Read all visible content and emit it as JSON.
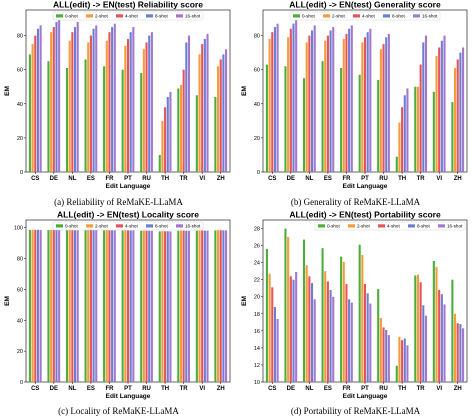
{
  "colors": [
    "#4cae3a",
    "#f79a3a",
    "#e8535a",
    "#6a7fd1",
    "#a376cf"
  ],
  "chart_data": [
    {
      "type": "bar",
      "title": "ALL(edit) -> EN(test) Reliability score",
      "caption": "(a)  Reliability of ReMaKE-LLaMA",
      "xlabel": "Edit Language",
      "ylabel": "EM",
      "ylim": [
        0,
        95
      ],
      "yticks": [
        0,
        20,
        40,
        60,
        80
      ],
      "legend_position": "top-center",
      "categories": [
        "CS",
        "DE",
        "NL",
        "ES",
        "FR",
        "PT",
        "RU",
        "TH",
        "TR",
        "VI",
        "ZH"
      ],
      "series": [
        {
          "name": "0-shot",
          "values": [
            69,
            65,
            61,
            66,
            62,
            60,
            58,
            10,
            49,
            45,
            44
          ]
        },
        {
          "name": "2-shot",
          "values": [
            75,
            82,
            77,
            76,
            77,
            74,
            72,
            30,
            51,
            69,
            62
          ]
        },
        {
          "name": "4-shot",
          "values": [
            80,
            85,
            82,
            80,
            82,
            78,
            76,
            38,
            60,
            75,
            66
          ]
        },
        {
          "name": "8-shot",
          "values": [
            84,
            88,
            85,
            84,
            85,
            82,
            80,
            44,
            76,
            78,
            69
          ]
        },
        {
          "name": "16-shot",
          "values": [
            86,
            90,
            88,
            86,
            87,
            85,
            82,
            47,
            80,
            81,
            72
          ]
        }
      ]
    },
    {
      "type": "bar",
      "title": "ALL(edit) -> EN(test) Generality score",
      "caption": "(b)  Generality of ReMaKE-LLaMA",
      "xlabel": "Edit Language",
      "ylabel": "EM",
      "ylim": [
        0,
        95
      ],
      "yticks": [
        0,
        20,
        40,
        60,
        80
      ],
      "legend_position": "top-center",
      "categories": [
        "CS",
        "DE",
        "NL",
        "ES",
        "FR",
        "PT",
        "RU",
        "TH",
        "TR",
        "VI",
        "ZH"
      ],
      "series": [
        {
          "name": "0-shot",
          "values": [
            63,
            62,
            55,
            65,
            61,
            57,
            54,
            9,
            50,
            47,
            41
          ]
        },
        {
          "name": "2-shot",
          "values": [
            78,
            79,
            76,
            77,
            78,
            76,
            72,
            29,
            50,
            68,
            61
          ]
        },
        {
          "name": "4-shot",
          "values": [
            82,
            84,
            80,
            80,
            81,
            79,
            75,
            38,
            63,
            73,
            66
          ]
        },
        {
          "name": "8-shot",
          "values": [
            85,
            87,
            83,
            83,
            84,
            82,
            79,
            45,
            76,
            77,
            70
          ]
        },
        {
          "name": "16-shot",
          "values": [
            87,
            89,
            86,
            85,
            86,
            84,
            81,
            49,
            80,
            80,
            73
          ]
        }
      ]
    },
    {
      "type": "bar",
      "title": "ALL(edit) -> EN(test) Locality score",
      "caption": "(c)  Locality of ReMaKE-LLaMA",
      "xlabel": "Edit Language",
      "ylabel": "EM",
      "ylim": [
        0,
        105
      ],
      "yticks": [
        0,
        20,
        40,
        60,
        80,
        100
      ],
      "legend_position": "top-center",
      "categories": [
        "CS",
        "DE",
        "NL",
        "ES",
        "FR",
        "PT",
        "RU",
        "TH",
        "TR",
        "VI",
        "ZH"
      ],
      "series": [
        {
          "name": "0-shot",
          "values": [
            98.5,
            98.5,
            98.3,
            98.4,
            98.3,
            98.2,
            98.0,
            97.6,
            98.0,
            98.1,
            98.3
          ]
        },
        {
          "name": "2-shot",
          "values": [
            98.7,
            98.6,
            98.5,
            98.6,
            98.4,
            98.3,
            98.1,
            97.8,
            98.1,
            98.2,
            98.4
          ]
        },
        {
          "name": "4-shot",
          "values": [
            98.6,
            98.5,
            98.4,
            98.5,
            98.4,
            98.3,
            98.1,
            97.7,
            98.1,
            98.2,
            98.4
          ]
        },
        {
          "name": "8-shot",
          "values": [
            98.6,
            98.5,
            98.4,
            98.5,
            98.3,
            98.2,
            98.0,
            97.7,
            98.0,
            98.1,
            98.3
          ]
        },
        {
          "name": "16-shot",
          "values": [
            98.5,
            98.4,
            98.3,
            98.4,
            98.3,
            98.2,
            98.0,
            97.6,
            98.0,
            98.1,
            98.3
          ]
        }
      ]
    },
    {
      "type": "bar",
      "title": "ALL(edit) -> EN(test) Portability score",
      "caption": "(d)  Portability of ReMaKE-LLaMA",
      "xlabel": "Edit Language",
      "ylabel": "EM",
      "ylim": [
        10,
        29
      ],
      "yticks": [
        10,
        12,
        14,
        16,
        18,
        20,
        22,
        24,
        26,
        28
      ],
      "legend_position": "top-right",
      "categories": [
        "CS",
        "DE",
        "NL",
        "ES",
        "FR",
        "PT",
        "RU",
        "TH",
        "TR",
        "VI",
        "ZH"
      ],
      "series": [
        {
          "name": "0-shot",
          "values": [
            25.6,
            28.0,
            26.7,
            25.7,
            24.7,
            26.1,
            20.9,
            11.9,
            22.5,
            24.2,
            22.0
          ]
        },
        {
          "name": "2-shot",
          "values": [
            22.7,
            27.0,
            23.7,
            23.0,
            24.1,
            24.9,
            17.5,
            15.3,
            22.6,
            23.5,
            18.0
          ]
        },
        {
          "name": "4-shot",
          "values": [
            21.1,
            22.4,
            22.4,
            21.8,
            21.5,
            21.5,
            16.4,
            14.9,
            21.7,
            20.8,
            16.9
          ]
        },
        {
          "name": "8-shot",
          "values": [
            18.8,
            22.0,
            21.6,
            20.8,
            19.7,
            20.4,
            16.1,
            15.1,
            19.0,
            20.3,
            16.8
          ]
        },
        {
          "name": "16-shot",
          "values": [
            17.4,
            22.9,
            19.7,
            20.0,
            19.3,
            19.2,
            15.5,
            14.3,
            17.8,
            19.1,
            16.3
          ]
        }
      ]
    }
  ]
}
